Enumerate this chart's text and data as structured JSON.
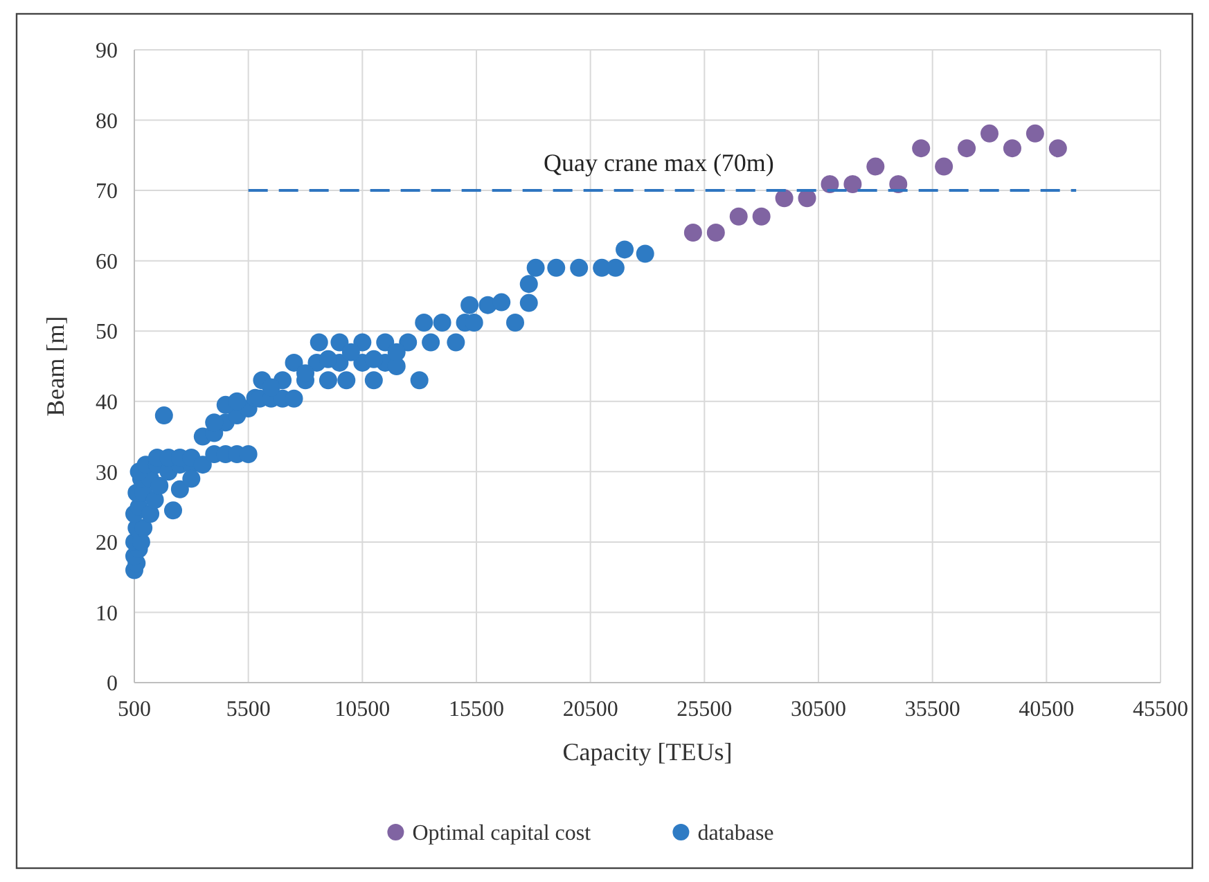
{
  "chart_data": {
    "type": "scatter",
    "xlabel": "Capacity [TEUs]",
    "ylabel": "Beam [m]",
    "xlim": [
      500,
      45500
    ],
    "xticks": [
      500,
      5500,
      10500,
      15500,
      20500,
      25500,
      30500,
      35500,
      40500,
      45500
    ],
    "ylim": [
      0,
      90
    ],
    "yticks": [
      0,
      10,
      20,
      30,
      40,
      50,
      60,
      70,
      80,
      90
    ],
    "grid": true,
    "legend": "bottom",
    "marker": "circle",
    "annotations": [
      {
        "text": "Quay crane max (70m)",
        "x": 23500,
        "y": 70
      }
    ],
    "series": [
      {
        "type": "line",
        "color": "#2e75c0",
        "line_style": "dashed",
        "marker": "none",
        "x": [
          5500,
          41800
        ],
        "values": [
          70,
          70
        ]
      },
      {
        "name": "Optimal capital cost",
        "color": "#8064a2",
        "x": [
          25000,
          26000,
          27000,
          28000,
          29000,
          30000,
          31000,
          32000,
          33000,
          34000,
          35000,
          36000,
          37000,
          38000,
          39000,
          40000,
          41000
        ],
        "values": [
          64,
          64,
          66.3,
          66.3,
          68.9,
          68.9,
          70.9,
          70.9,
          73.4,
          70.9,
          76,
          73.4,
          76,
          78.1,
          76,
          78.1,
          76
        ]
      },
      {
        "name": "database",
        "color": "#2e7bc4",
        "x": [
          500,
          600,
          500,
          700,
          500,
          800,
          600,
          900,
          500,
          700,
          1200,
          600,
          900,
          1400,
          800,
          1200,
          1600,
          700,
          1000,
          1500,
          2000,
          2500,
          3000,
          1500,
          2000,
          2500,
          3000,
          1800,
          2200,
          2500,
          3000,
          3500,
          4000,
          4500,
          5000,
          5500,
          3500,
          4000,
          4500,
          5000,
          5500,
          4500,
          5000,
          5800,
          4000,
          6000,
          6500,
          7000,
          7500,
          6100,
          7000,
          8000,
          9000,
          9800,
          11000,
          13000,
          7500,
          8500,
          9500,
          10500,
          11500,
          12000,
          8600,
          9500,
          10500,
          11500,
          12500,
          13500,
          14600,
          13200,
          14000,
          15000,
          15400,
          17200,
          15200,
          16000,
          16600,
          17800,
          17800,
          18100,
          19000,
          20000,
          21000,
          21600,
          22000,
          22900,
          6500,
          8000,
          9000,
          10000,
          12000,
          11000
        ],
        "values": [
          16,
          17,
          18,
          19,
          20,
          20,
          22,
          22,
          24,
          25,
          24,
          27,
          27,
          26,
          29,
          29,
          28,
          30,
          31,
          31,
          30,
          31,
          31,
          32,
          32,
          32,
          32,
          38,
          24.5,
          27.5,
          29,
          31,
          32.5,
          32.5,
          32.5,
          32.5,
          35,
          35.5,
          37,
          38,
          39,
          39.5,
          40,
          40.5,
          37,
          40.4,
          40.4,
          40.4,
          40.4,
          43,
          43,
          43,
          43,
          43,
          43,
          43,
          45.5,
          45.5,
          45.5,
          45.5,
          45.5,
          45,
          48.4,
          48.4,
          48.4,
          48.4,
          48.4,
          48.4,
          48.4,
          51.2,
          51.2,
          51.2,
          51.2,
          51.2,
          53.7,
          53.7,
          54.1,
          54,
          56.7,
          59,
          59,
          59,
          59,
          59,
          61.6,
          61,
          42,
          44,
          46,
          47,
          47,
          46
        ]
      }
    ]
  }
}
